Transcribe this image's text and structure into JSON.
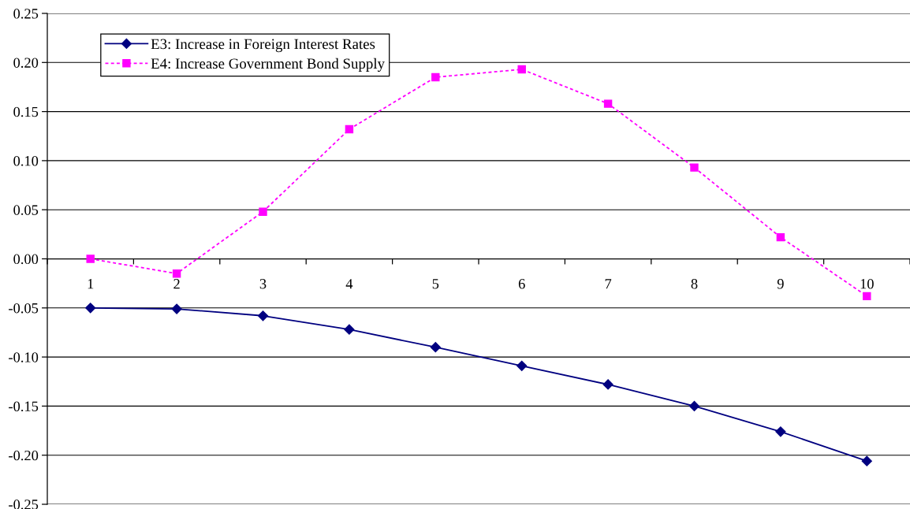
{
  "chart_data": {
    "type": "line",
    "categories": [
      "1",
      "2",
      "3",
      "4",
      "5",
      "6",
      "7",
      "8",
      "9",
      "10"
    ],
    "series": [
      {
        "name": "E3: Increase in Foreign Interest Rates",
        "color": "#000080",
        "marker": "diamond",
        "line_style": "solid",
        "values": [
          -0.05,
          -0.051,
          -0.058,
          -0.072,
          -0.09,
          -0.109,
          -0.128,
          -0.15,
          -0.176,
          -0.206
        ]
      },
      {
        "name": "E4: Increase Government Bond Supply",
        "color": "#ff00ff",
        "marker": "square",
        "line_style": "dashed",
        "values": [
          0.0,
          -0.015,
          0.048,
          0.132,
          0.185,
          0.193,
          0.158,
          0.093,
          0.022,
          -0.038
        ]
      }
    ],
    "ylim": [
      -0.25,
      0.25
    ],
    "yticks": [
      0.25,
      {
        "value": 0.2,
        "label": "0.20"
      },
      0.15,
      {
        "value": 0.1,
        "label": "0.10"
      },
      0.05,
      {
        "value": 0,
        "label": "0.00"
      },
      -0.05,
      {
        "value": -0.1,
        "label": "-0.10"
      },
      -0.15,
      {
        "value": -0.2,
        "label": "-0.20"
      },
      -0.25
    ],
    "grid": "y",
    "legend": "top left"
  }
}
